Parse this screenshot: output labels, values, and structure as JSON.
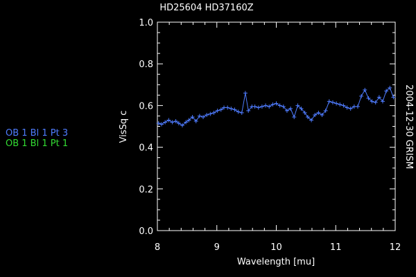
{
  "chart_data": {
    "type": "line",
    "title": "HD25604  HD37160Z",
    "xlabel": "Wavelength [mu]",
    "ylabel": "VisSq c",
    "side_label": "2004-12-30 GRISM",
    "xlim": [
      8,
      12
    ],
    "ylim": [
      0.0,
      1.0
    ],
    "x_ticks": [
      8,
      9,
      10,
      11,
      12
    ],
    "y_ticks": [
      "0.0",
      "0.2",
      "0.4",
      "0.6",
      "0.8",
      "1.0"
    ],
    "grid": false,
    "background": "#000000",
    "axis_color": "#ffffff",
    "legend": {
      "placement": "left",
      "entries": [
        {
          "label": "OB 1 Bl 1 Pt 3",
          "color": "#4f7cff"
        },
        {
          "label": "OB 1 Bl 1 Pt 1",
          "color": "#33dd33"
        }
      ]
    },
    "series": [
      {
        "name": "OB 1 Bl 1 Pt 3",
        "color": "#4f7cff",
        "marker": "plus",
        "x": [
          8.02,
          8.07,
          8.13,
          8.19,
          8.25,
          8.31,
          8.36,
          8.42,
          8.48,
          8.53,
          8.59,
          8.65,
          8.71,
          8.77,
          8.83,
          8.89,
          8.95,
          9.01,
          9.07,
          9.12,
          9.18,
          9.24,
          9.3,
          9.36,
          9.42,
          9.48,
          9.53,
          9.59,
          9.64,
          9.7,
          9.76,
          9.82,
          9.88,
          9.94,
          10.0,
          10.06,
          10.12,
          10.18,
          10.24,
          10.3,
          10.36,
          10.42,
          10.48,
          10.53,
          10.59,
          10.65,
          10.71,
          10.77,
          10.83,
          10.89,
          10.95,
          11.01,
          11.07,
          11.13,
          11.19,
          11.25,
          11.31,
          11.37,
          11.43,
          11.49,
          11.55,
          11.61,
          11.67,
          11.73,
          11.79,
          11.85,
          11.91,
          11.97
        ],
        "y": [
          0.515,
          0.51,
          0.52,
          0.53,
          0.52,
          0.525,
          0.515,
          0.505,
          0.52,
          0.53,
          0.545,
          0.525,
          0.55,
          0.545,
          0.555,
          0.56,
          0.565,
          0.575,
          0.58,
          0.59,
          0.59,
          0.585,
          0.58,
          0.57,
          0.565,
          0.66,
          0.575,
          0.595,
          0.595,
          0.59,
          0.595,
          0.6,
          0.595,
          0.605,
          0.61,
          0.6,
          0.595,
          0.575,
          0.585,
          0.545,
          0.6,
          0.585,
          0.565,
          0.545,
          0.53,
          0.555,
          0.565,
          0.555,
          0.575,
          0.62,
          0.615,
          0.61,
          0.605,
          0.6,
          0.59,
          0.585,
          0.595,
          0.595,
          0.645,
          0.675,
          0.635,
          0.62,
          0.615,
          0.64,
          0.62,
          0.67,
          0.685,
          0.64
        ]
      }
    ]
  }
}
